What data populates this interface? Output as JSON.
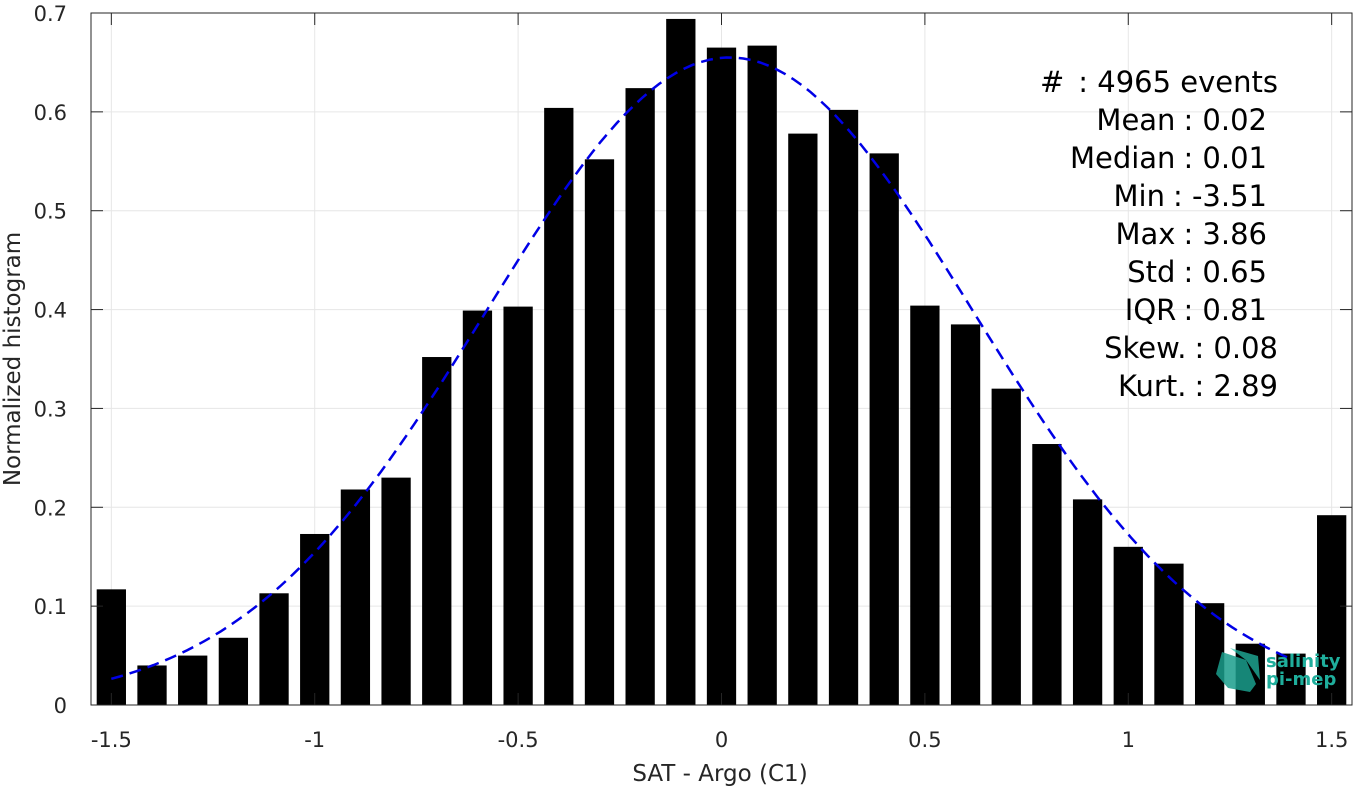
{
  "chart_data": {
    "type": "bar",
    "xlabel": "SAT - Argo (C1)",
    "ylabel": "Normalized histogram",
    "xlim": [
      -1.55,
      1.55
    ],
    "ylim": [
      0,
      0.7
    ],
    "xticks": [
      -1.5,
      -1,
      -0.5,
      0,
      0.5,
      1,
      1.5
    ],
    "xtick_labels": [
      "-1.5",
      "-1",
      "-0.5",
      "0",
      "0.5",
      "1",
      "1.5"
    ],
    "yticks": [
      0,
      0.1,
      0.2,
      0.3,
      0.4,
      0.5,
      0.6,
      0.7
    ],
    "ytick_labels": [
      "0",
      "0.1",
      "0.2",
      "0.3",
      "0.4",
      "0.5",
      "0.6",
      "0.7"
    ],
    "grid": true,
    "bar_color": "#000000",
    "bins": [
      -1.5,
      -1.4,
      -1.3,
      -1.2,
      -1.1,
      -1.0,
      -0.9,
      -0.8,
      -0.7,
      -0.6,
      -0.5,
      -0.4,
      -0.3,
      -0.2,
      -0.1,
      0.0,
      0.1,
      0.2,
      0.3,
      0.4,
      0.5,
      0.6,
      0.7,
      0.8,
      0.9,
      1.0,
      1.1,
      1.2,
      1.3,
      1.4,
      1.5
    ],
    "values": [
      0.117,
      0.04,
      0.05,
      0.068,
      0.113,
      0.173,
      0.218,
      0.23,
      0.352,
      0.399,
      0.403,
      0.604,
      0.552,
      0.624,
      0.694,
      0.665,
      0.667,
      0.578,
      0.602,
      0.558,
      0.404,
      0.385,
      0.32,
      0.264,
      0.208,
      0.16,
      0.143,
      0.103,
      0.062,
      0.052,
      0.192
    ],
    "fit_curve": {
      "type": "gaussian",
      "style": "dashed",
      "color": "#0000e6",
      "mean": 0.02,
      "std": 0.6,
      "peak": 0.655,
      "x_range": [
        -1.5,
        1.4
      ]
    },
    "annotations": [
      {
        "label": "#",
        "value": ": 4965 events"
      },
      {
        "label": "Mean",
        "value": ": 0.02"
      },
      {
        "label": "Median",
        "value": ": 0.01"
      },
      {
        "label": "Min",
        "value": ": -3.51"
      },
      {
        "label": "Max",
        "value": ": 3.86"
      },
      {
        "label": "Std",
        "value": ": 0.65"
      },
      {
        "label": "IQR",
        "value": ": 0.81"
      },
      {
        "label": "Skew.",
        "value": ": 0.08"
      },
      {
        "label": "Kurt.",
        "value": ": 2.89"
      }
    ]
  },
  "logo": {
    "line1": "salinity",
    "line2": "pi-mep",
    "color": "#1fae9c"
  }
}
